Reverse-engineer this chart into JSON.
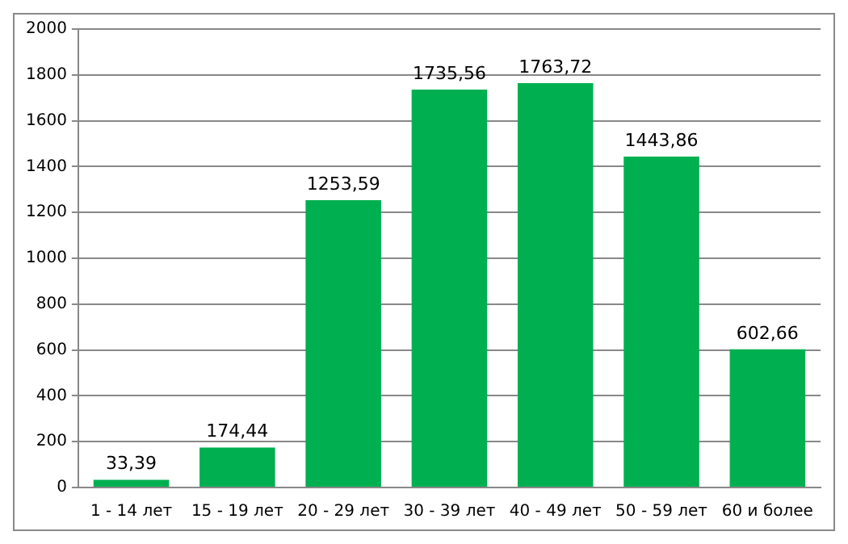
{
  "chart_data": {
    "type": "bar",
    "categories": [
      "1 - 14 лет",
      "15 - 19 лет",
      "20 - 29 лет",
      "30 - 39 лет",
      "40 - 49 лет",
      "50 - 59 лет",
      "60 и более"
    ],
    "values": [
      33.39,
      174.44,
      1253.59,
      1735.56,
      1763.72,
      1443.86,
      602.66
    ],
    "value_labels": [
      "33,39",
      "174,44",
      "1253,59",
      "1735,56",
      "1763,72",
      "1443,86",
      "602,66"
    ],
    "color": "#00b050",
    "ylim": [
      0,
      2000
    ],
    "yticks": [
      0,
      200,
      400,
      600,
      800,
      1000,
      1200,
      1400,
      1600,
      1800,
      2000
    ],
    "grid": "y",
    "legend": false
  }
}
